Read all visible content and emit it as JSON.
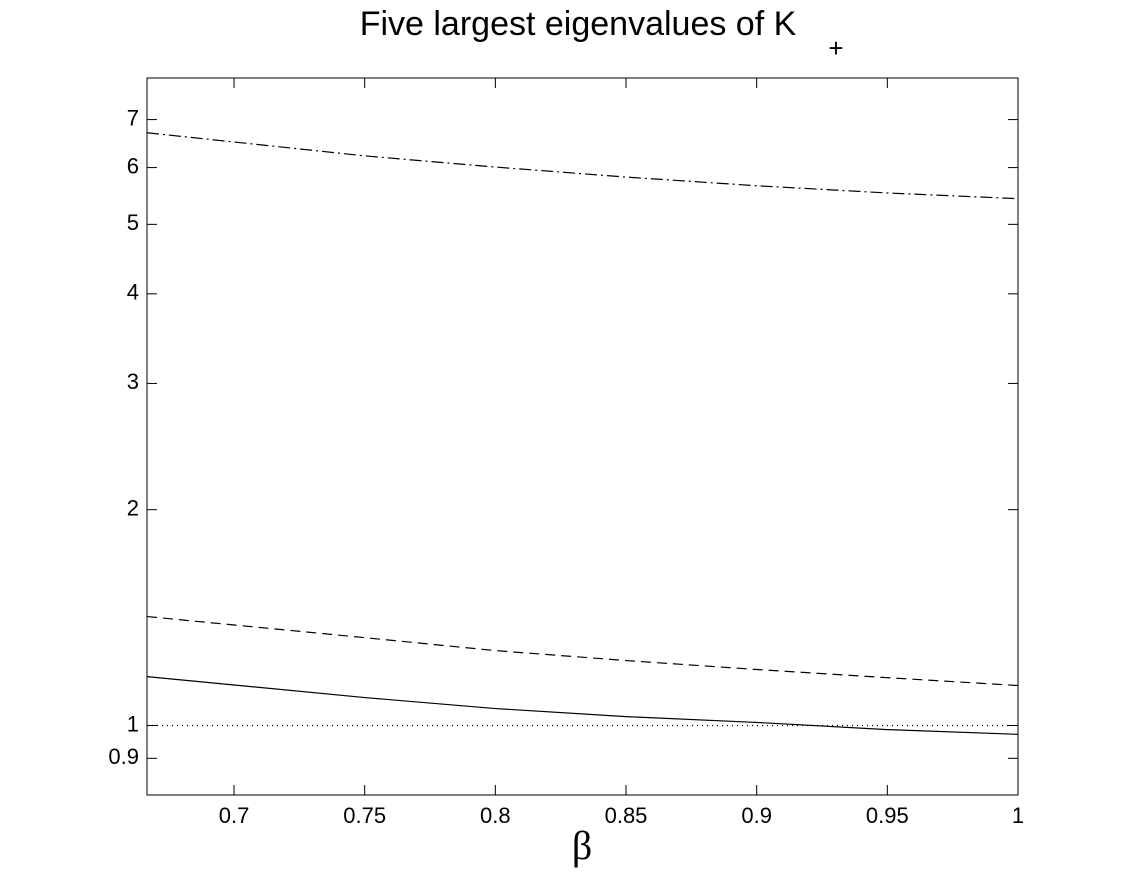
{
  "chart_data": {
    "type": "line",
    "title": "Five largest eigenvalues of K",
    "title_subscript": "+",
    "x_label": "β",
    "x": [
      0.6667,
      0.75,
      0.8,
      0.85,
      0.9,
      0.95,
      1
    ],
    "series": [
      {
        "color": "#000000",
        "style": "dashdot",
        "values": [
          6.71,
          6.23,
          6.01,
          5.82,
          5.66,
          5.53,
          5.43
        ]
      },
      {
        "color": "#000000",
        "style": "dashed",
        "values": [
          1.419,
          1.326,
          1.272,
          1.232,
          1.197,
          1.166,
          1.137
        ]
      },
      {
        "color": "#000000",
        "style": "solid",
        "values": [
          1.17,
          1.094,
          1.056,
          1.029,
          1.01,
          0.987,
          0.972
        ]
      },
      {
        "color": "#000000",
        "style": "dotted",
        "values": [
          1,
          1,
          1,
          1,
          1,
          1,
          1
        ]
      }
    ],
    "xlim": [
      0.6667,
      1
    ],
    "xticks": [
      0.7,
      0.75,
      0.8,
      0.85,
      0.9,
      0.95,
      1
    ],
    "ylim": [
      0.8,
      8
    ],
    "yticks": [
      0.9,
      1,
      2,
      3,
      4,
      5,
      6,
      7
    ],
    "y_scale": "log",
    "grid": false
  }
}
